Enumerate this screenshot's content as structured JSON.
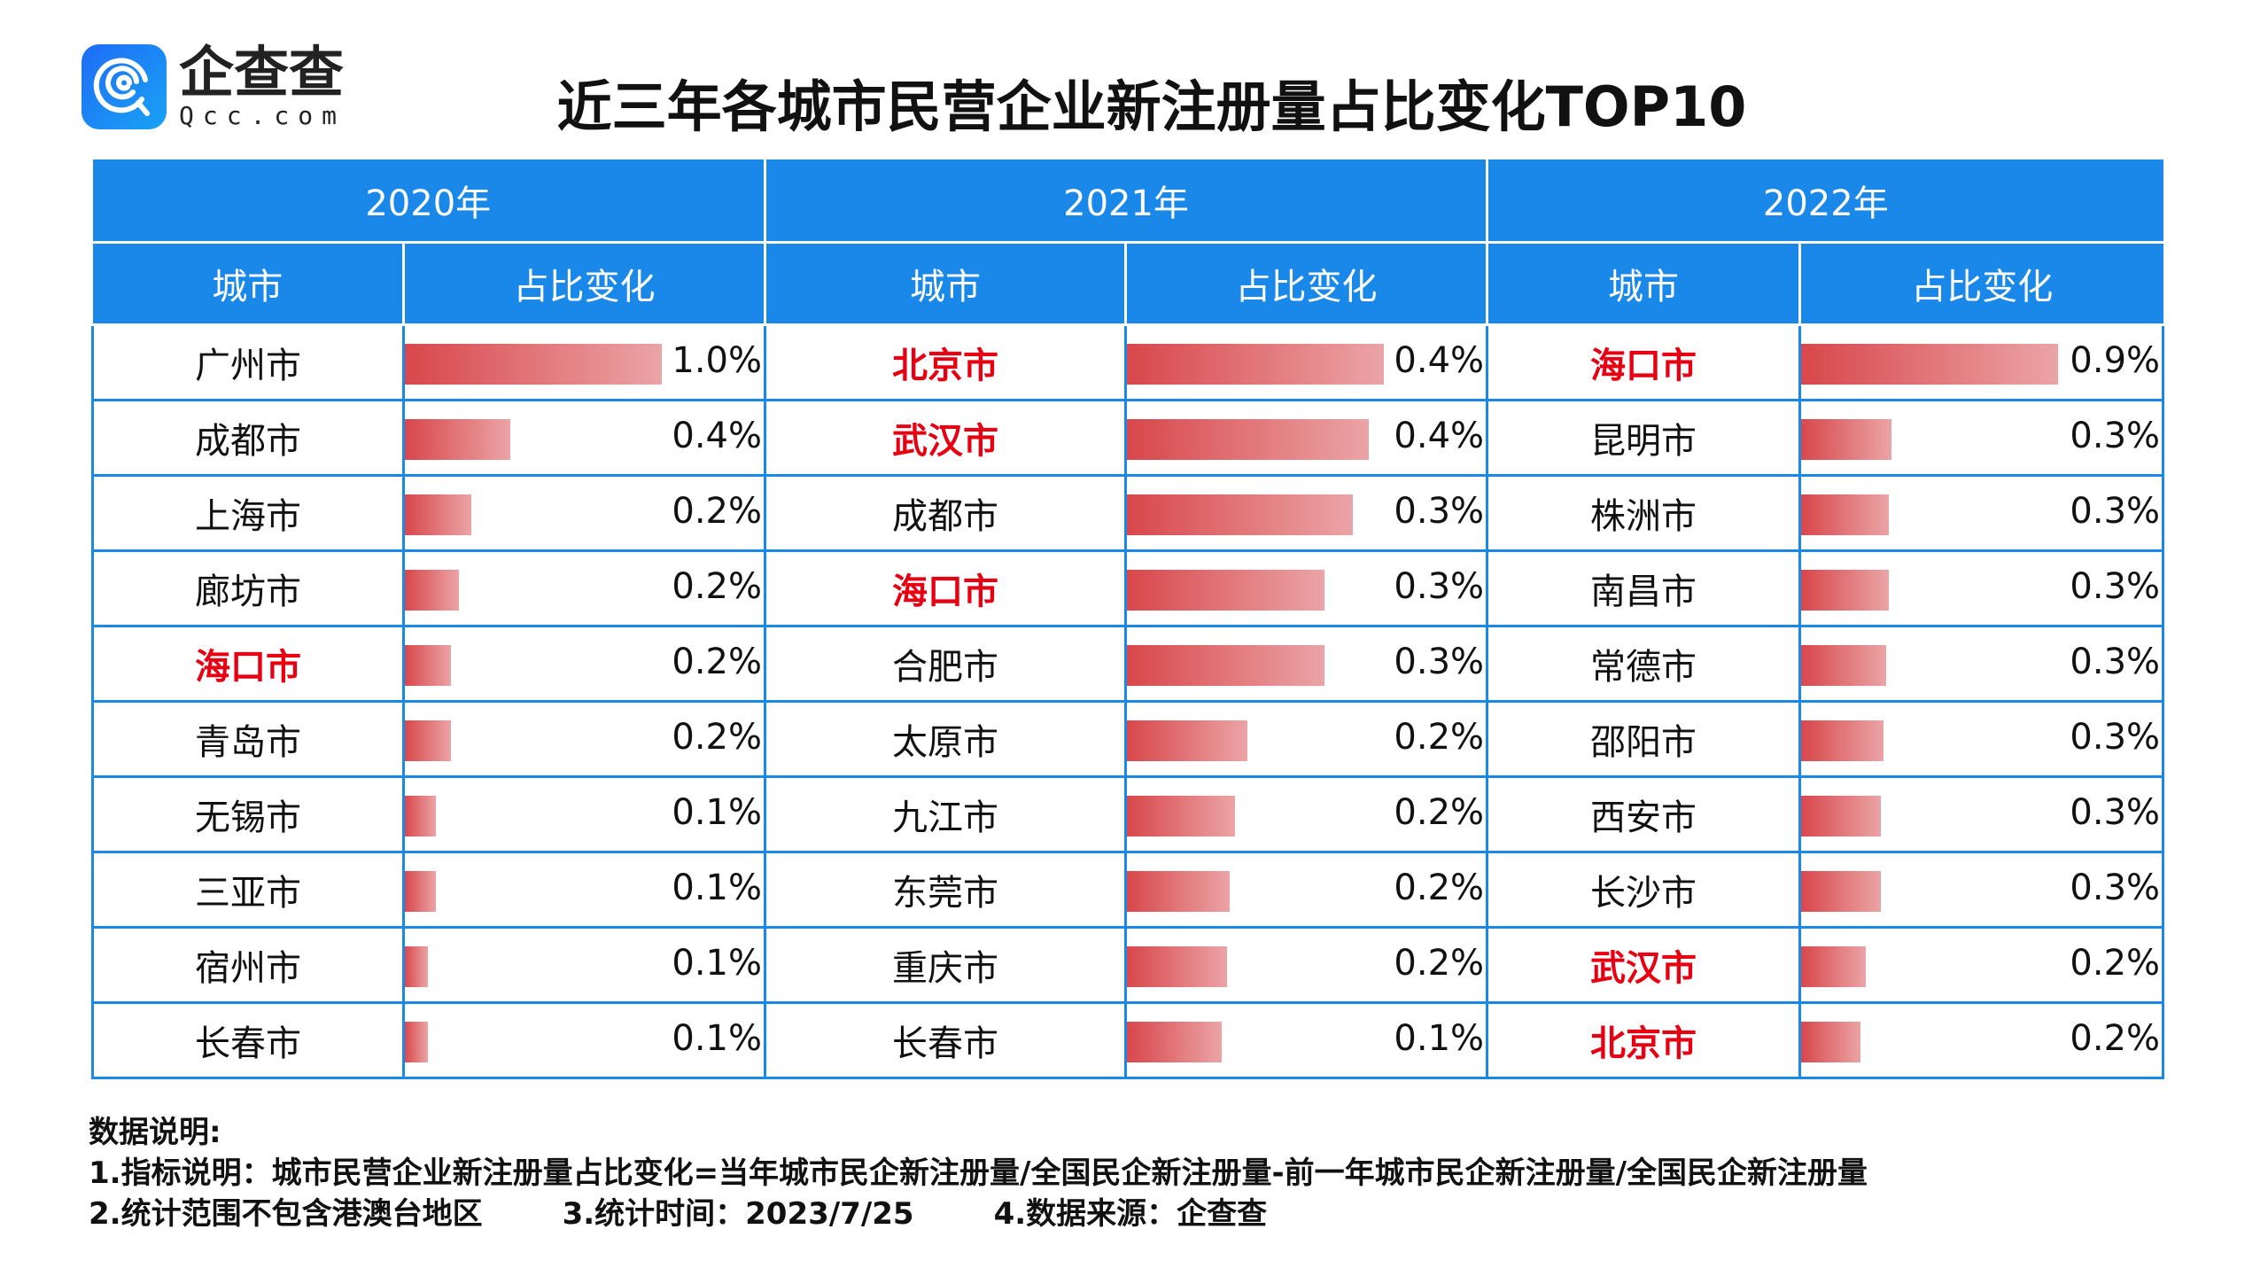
{
  "logo": {
    "cn": "企查查",
    "en": "Qcc.com"
  },
  "chart_data": {
    "type": "table",
    "title": "近三年各城市民营企业新注册量占比变化TOP10",
    "column_headers": [
      "城市",
      "占比变化"
    ],
    "accent_color": "#1a88e8",
    "highlight_color": "#e60012",
    "bar_color": "#d8474b",
    "years": [
      {
        "label": "2020年",
        "rows": [
          {
            "city": "广州市",
            "value": "1.0%",
            "bar": 1.0,
            "hl": false
          },
          {
            "city": "成都市",
            "value": "0.4%",
            "bar": 0.41,
            "hl": false
          },
          {
            "city": "上海市",
            "value": "0.2%",
            "bar": 0.26,
            "hl": false
          },
          {
            "city": "廊坊市",
            "value": "0.2%",
            "bar": 0.21,
            "hl": false
          },
          {
            "city": "海口市",
            "value": "0.2%",
            "bar": 0.18,
            "hl": true
          },
          {
            "city": "青岛市",
            "value": "0.2%",
            "bar": 0.18,
            "hl": false
          },
          {
            "city": "无锡市",
            "value": "0.1%",
            "bar": 0.12,
            "hl": false
          },
          {
            "city": "三亚市",
            "value": "0.1%",
            "bar": 0.12,
            "hl": false
          },
          {
            "city": "宿州市",
            "value": "0.1%",
            "bar": 0.09,
            "hl": false
          },
          {
            "city": "长春市",
            "value": "0.1%",
            "bar": 0.09,
            "hl": false
          }
        ]
      },
      {
        "label": "2021年",
        "rows": [
          {
            "city": "北京市",
            "value": "0.4%",
            "bar": 1.0,
            "hl": true
          },
          {
            "city": "武汉市",
            "value": "0.4%",
            "bar": 0.94,
            "hl": true
          },
          {
            "city": "成都市",
            "value": "0.3%",
            "bar": 0.88,
            "hl": false
          },
          {
            "city": "海口市",
            "value": "0.3%",
            "bar": 0.77,
            "hl": true
          },
          {
            "city": "合肥市",
            "value": "0.3%",
            "bar": 0.77,
            "hl": false
          },
          {
            "city": "太原市",
            "value": "0.2%",
            "bar": 0.47,
            "hl": false
          },
          {
            "city": "九江市",
            "value": "0.2%",
            "bar": 0.42,
            "hl": false
          },
          {
            "city": "东莞市",
            "value": "0.2%",
            "bar": 0.4,
            "hl": false
          },
          {
            "city": "重庆市",
            "value": "0.2%",
            "bar": 0.39,
            "hl": false
          },
          {
            "city": "长春市",
            "value": "0.1%",
            "bar": 0.37,
            "hl": false
          }
        ]
      },
      {
        "label": "2022年",
        "rows": [
          {
            "city": "海口市",
            "value": "0.9%",
            "bar": 1.0,
            "hl": true
          },
          {
            "city": "昆明市",
            "value": "0.3%",
            "bar": 0.35,
            "hl": false
          },
          {
            "city": "株洲市",
            "value": "0.3%",
            "bar": 0.34,
            "hl": false
          },
          {
            "city": "南昌市",
            "value": "0.3%",
            "bar": 0.34,
            "hl": false
          },
          {
            "city": "常德市",
            "value": "0.3%",
            "bar": 0.33,
            "hl": false
          },
          {
            "city": "邵阳市",
            "value": "0.3%",
            "bar": 0.32,
            "hl": false
          },
          {
            "city": "西安市",
            "value": "0.3%",
            "bar": 0.31,
            "hl": false
          },
          {
            "city": "长沙市",
            "value": "0.3%",
            "bar": 0.31,
            "hl": false
          },
          {
            "city": "武汉市",
            "value": "0.2%",
            "bar": 0.25,
            "hl": true
          },
          {
            "city": "北京市",
            "value": "0.2%",
            "bar": 0.23,
            "hl": true
          }
        ]
      }
    ]
  },
  "notes": {
    "heading": "数据说明:",
    "line1": "1.指标说明：城市民营企业新注册量占比变化=当年城市民企新注册量/全国民企新注册量-前一年城市民企新注册量/全国民企新注册量",
    "scope": "2.统计范围不包含港澳台地区",
    "time": "3.统计时间：2023/7/25",
    "source": "4.数据来源：企查查"
  }
}
